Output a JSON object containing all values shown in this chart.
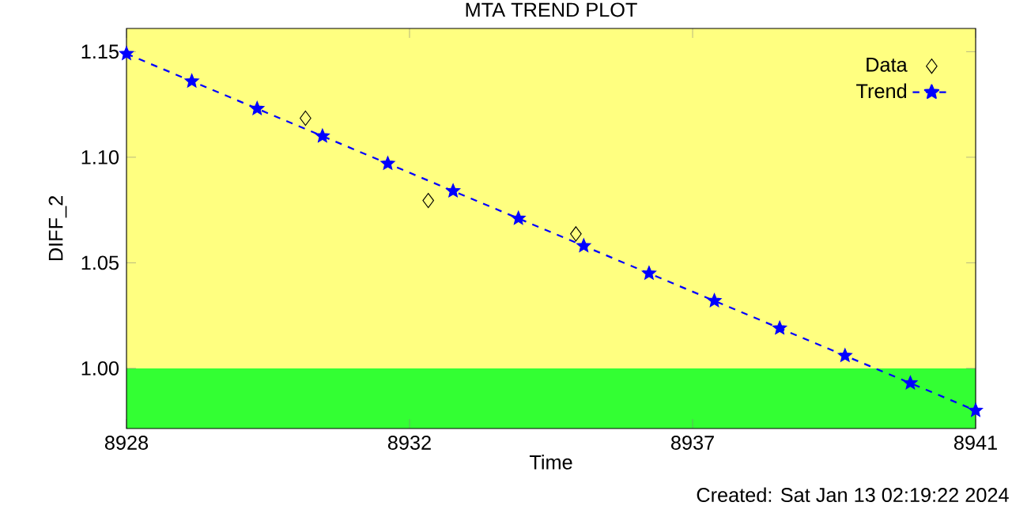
{
  "chart_data": {
    "type": "line",
    "title": "MTA TREND PLOT",
    "xlabel": "Time",
    "ylabel": "DIFF_2",
    "xlim": [
      8928,
      8941
    ],
    "ylim": [
      0.9715,
      1.161
    ],
    "xticks": [
      8928,
      {
        "value": 8932.333,
        "label": "8932"
      },
      {
        "value": 8936.667,
        "label": "8937"
      },
      8941
    ],
    "yticks": [
      {
        "value": 1.0,
        "label": "1.00"
      },
      {
        "value": 1.05,
        "label": "1.05"
      },
      {
        "value": 1.1,
        "label": "1.10"
      },
      {
        "value": 1.15,
        "label": "1.15"
      }
    ],
    "bands": [
      {
        "axis": "y",
        "from": 0.9715,
        "to": 1.0,
        "color": "#33ff33"
      },
      {
        "axis": "y",
        "from": 1.0,
        "to": 1.161,
        "color": "#ffff80"
      }
    ],
    "series": [
      {
        "name": "Data",
        "type": "scatter",
        "color": "#000000",
        "marker": "diamond",
        "x": [
          8930.74,
          8932.62,
          8934.88
        ],
        "values": [
          1.1185,
          1.0795,
          1.0637
        ]
      },
      {
        "name": "Trend",
        "color": "#0000ff",
        "marker": "star",
        "line_style": "dashed",
        "x": [
          8928,
          8929,
          8930,
          8931,
          8932,
          8933,
          8934,
          8935,
          8936,
          8937,
          8938,
          8939,
          8940,
          8941
        ],
        "values": [
          1.149,
          1.136,
          1.123,
          1.11,
          1.097,
          1.084,
          1.071,
          1.058,
          1.045,
          1.032,
          1.019,
          1.006,
          0.993,
          0.98
        ]
      }
    ],
    "legend": "top right",
    "grid": false,
    "annotations": [
      "Created: Sat Jan 13 02:19:22 2024"
    ]
  }
}
